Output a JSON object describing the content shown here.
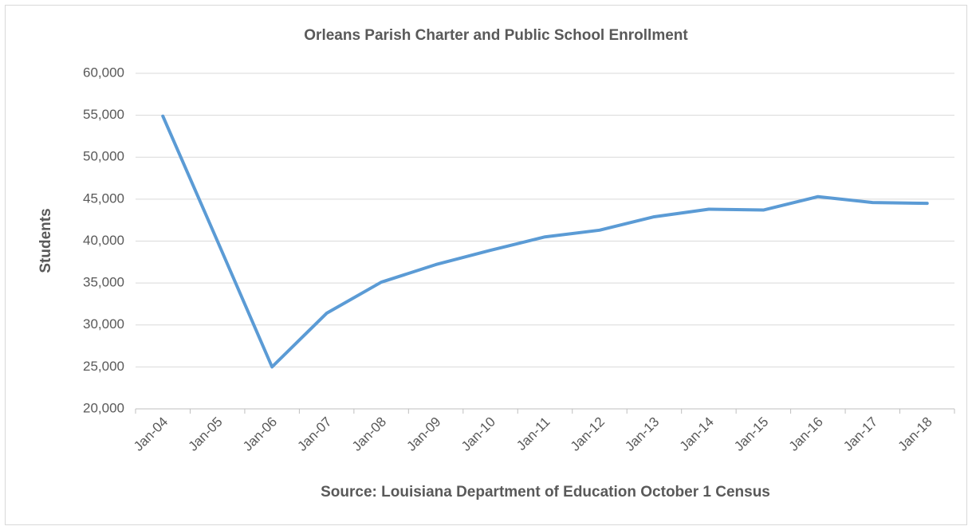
{
  "chart_data": {
    "type": "line",
    "title": "Orleans Parish Charter and Public School Enrollment",
    "y_label": "Students",
    "x_label": "Source: Louisiana Department of Education  October 1 Census",
    "categories": [
      "Jan-04",
      "Jan-05",
      "Jan-06",
      "Jan-07",
      "Jan-08",
      "Jan-09",
      "Jan-10",
      "Jan-11",
      "Jan-12",
      "Jan-13",
      "Jan-14",
      "Jan-15",
      "Jan-16",
      "Jan-17",
      "Jan-18"
    ],
    "series": [
      {
        "name": "Students",
        "color": "#5b9bd5",
        "values": [
          54900,
          40000,
          25000,
          31400,
          35100,
          37200,
          38900,
          40500,
          41300,
          42900,
          43800,
          43700,
          45300,
          44600,
          44500
        ]
      }
    ],
    "ylim": [
      20000,
      60000
    ],
    "yticks": [
      {
        "value": 20000,
        "label": "20,000"
      },
      {
        "value": 25000,
        "label": "25,000"
      },
      {
        "value": 30000,
        "label": "30,000"
      },
      {
        "value": 35000,
        "label": "35,000"
      },
      {
        "value": 40000,
        "label": "40,000"
      },
      {
        "value": 45000,
        "label": "45,000"
      },
      {
        "value": 50000,
        "label": "50,000"
      },
      {
        "value": 55000,
        "label": "55,000"
      },
      {
        "value": 60000,
        "label": "60,000"
      }
    ],
    "grid": true
  }
}
